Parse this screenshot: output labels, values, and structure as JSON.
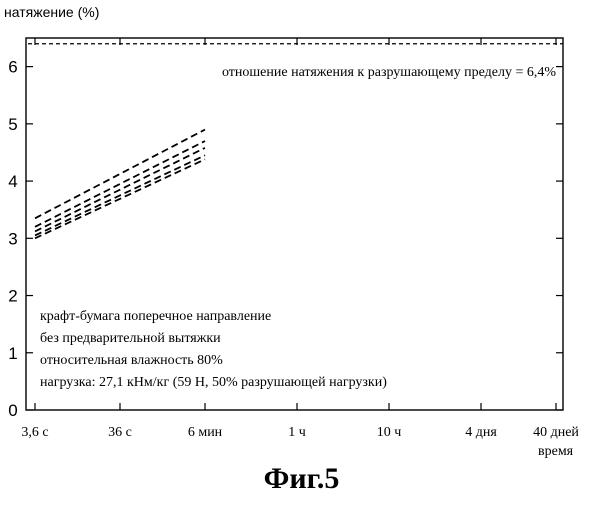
{
  "chart_data": {
    "type": "line",
    "ylabel": "натяжение (%)",
    "xlabel": "время",
    "ylim": [
      0,
      6.5
    ],
    "y_ticks": [
      0,
      1,
      2,
      3,
      4,
      5,
      6
    ],
    "x_tick_labels": [
      "3,6 с",
      "36 с",
      "6 мин",
      "1 ч",
      "10 ч",
      "4 дня",
      "40 дней"
    ],
    "x_scale": "log",
    "series": [
      {
        "x": [
          "3,6 с",
          "6 мин"
        ],
        "values": [
          3.35,
          4.9
        ]
      },
      {
        "x": [
          "3,6 с",
          "6 мин"
        ],
        "values": [
          3.2,
          4.7
        ]
      },
      {
        "x": [
          "3,6 с",
          "6 мин"
        ],
        "values": [
          3.12,
          4.58
        ]
      },
      {
        "x": [
          "3,6 с",
          "6 мин"
        ],
        "values": [
          3.05,
          4.45
        ]
      },
      {
        "x": [
          "3,6 с",
          "6 мин"
        ],
        "values": [
          3.0,
          4.38
        ]
      }
    ],
    "reference_line": {
      "value": 6.4
    },
    "annotations": [
      "отношение натяжения к разрушающему пределу = 6,4%",
      "крафт-бумага поперечное направление",
      "без предварительной вытяжки",
      "относительная влажность 80%",
      "нагрузка: 27,1 кНм/кг (59 Н, 50% разрушающей нагрузки)"
    ],
    "caption": "Фиг.5",
    "grid": false
  }
}
